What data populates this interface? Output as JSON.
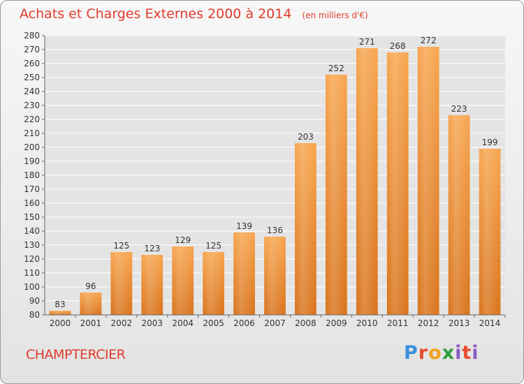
{
  "header": {
    "title": "Achats et Charges Externes 2000 à 2014",
    "unit": "(en milliers d'€)"
  },
  "footer": {
    "commune": "CHAMPTERCIER",
    "logo_text": "Proxiti"
  },
  "colors": {
    "title": "#e03c2c",
    "bar_top": "#f7a54e",
    "bar_bottom": "#d9731c",
    "grid": "#ffffff"
  },
  "chart_data": {
    "type": "bar",
    "categories": [
      "2000",
      "2001",
      "2002",
      "2003",
      "2004",
      "2005",
      "2006",
      "2007",
      "2008",
      "2009",
      "2010",
      "2011",
      "2012",
      "2013",
      "2014"
    ],
    "values": [
      83,
      96,
      125,
      123,
      129,
      125,
      139,
      136,
      203,
      252,
      271,
      268,
      272,
      223,
      199
    ],
    "title": "Achats et Charges Externes 2000 à 2014",
    "xlabel": "",
    "ylabel": "",
    "ylim": [
      80,
      280
    ],
    "ytick_step": 10,
    "grid": true,
    "legend": "none"
  }
}
